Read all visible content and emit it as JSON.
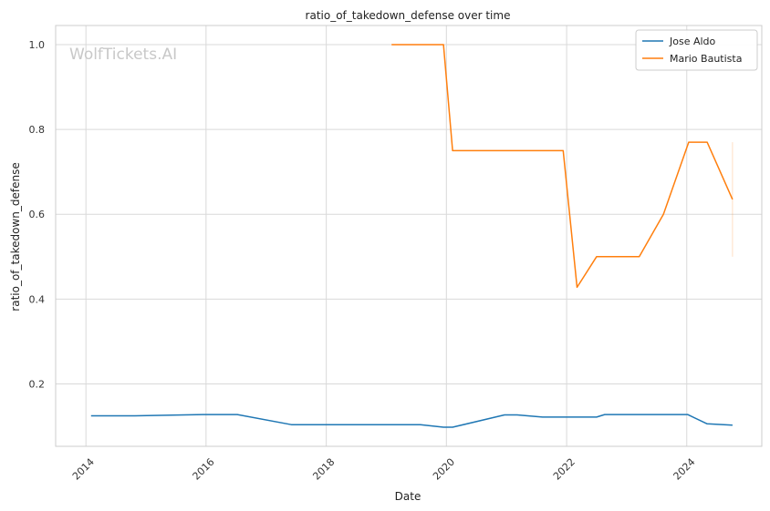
{
  "chart_data": {
    "type": "line",
    "title": "ratio_of_takedown_defense over time",
    "xlabel": "Date",
    "ylabel": "ratio_of_takedown_defense",
    "xlim": [
      "2013-07-01",
      "2025-04-01"
    ],
    "ylim": [
      0.053,
      1.045
    ],
    "x_ticks": [
      "2014",
      "2016",
      "2018",
      "2020",
      "2022",
      "2024"
    ],
    "y_ticks": [
      0.2,
      0.4,
      0.6,
      0.8,
      1.0
    ],
    "y_tick_labels": [
      "0.2",
      "0.4",
      "0.6",
      "0.8",
      "1.0"
    ],
    "grid": true,
    "legend_position": "top-right",
    "watermark": "WolfTickets.AI",
    "series": [
      {
        "name": "Jose Aldo",
        "color": "#1f77b4",
        "points": [
          {
            "date": "2014-02-01",
            "value": 0.125
          },
          {
            "date": "2014-10-25",
            "value": 0.125
          },
          {
            "date": "2015-12-12",
            "value": 0.128
          },
          {
            "date": "2016-07-09",
            "value": 0.128
          },
          {
            "date": "2017-06-03",
            "value": 0.104
          },
          {
            "date": "2017-12-02",
            "value": 0.104
          },
          {
            "date": "2018-07-28",
            "value": 0.104
          },
          {
            "date": "2019-07-27",
            "value": 0.104
          },
          {
            "date": "2019-12-14",
            "value": 0.098
          },
          {
            "date": "2020-02-08",
            "value": 0.098
          },
          {
            "date": "2020-12-19",
            "value": 0.127
          },
          {
            "date": "2021-03-06",
            "value": 0.127
          },
          {
            "date": "2021-08-07",
            "value": 0.122
          },
          {
            "date": "2021-12-11",
            "value": 0.122
          },
          {
            "date": "2022-07-02",
            "value": 0.122
          },
          {
            "date": "2022-08-20",
            "value": 0.128
          },
          {
            "date": "2023-03-04",
            "value": 0.128
          },
          {
            "date": "2024-01-06",
            "value": 0.128
          },
          {
            "date": "2024-05-04",
            "value": 0.106
          },
          {
            "date": "2024-10-05",
            "value": 0.103
          }
        ]
      },
      {
        "name": "Mario Bautista",
        "color": "#ff7f0e",
        "points": [
          {
            "date": "2019-02-02",
            "value": 1.0
          },
          {
            "date": "2019-12-14",
            "value": 1.0
          },
          {
            "date": "2020-02-08",
            "value": 0.75
          },
          {
            "date": "2021-12-11",
            "value": 0.75
          },
          {
            "date": "2022-03-05",
            "value": 0.428
          },
          {
            "date": "2022-07-02",
            "value": 0.5
          },
          {
            "date": "2023-03-18",
            "value": 0.5
          },
          {
            "date": "2023-08-12",
            "value": 0.6
          },
          {
            "date": "2024-01-13",
            "value": 0.77
          },
          {
            "date": "2024-05-04",
            "value": 0.77
          },
          {
            "date": "2024-10-05",
            "value": 0.635
          }
        ],
        "error_bar": {
          "date": "2024-10-05",
          "low": 0.5,
          "high": 0.77
        }
      }
    ]
  }
}
